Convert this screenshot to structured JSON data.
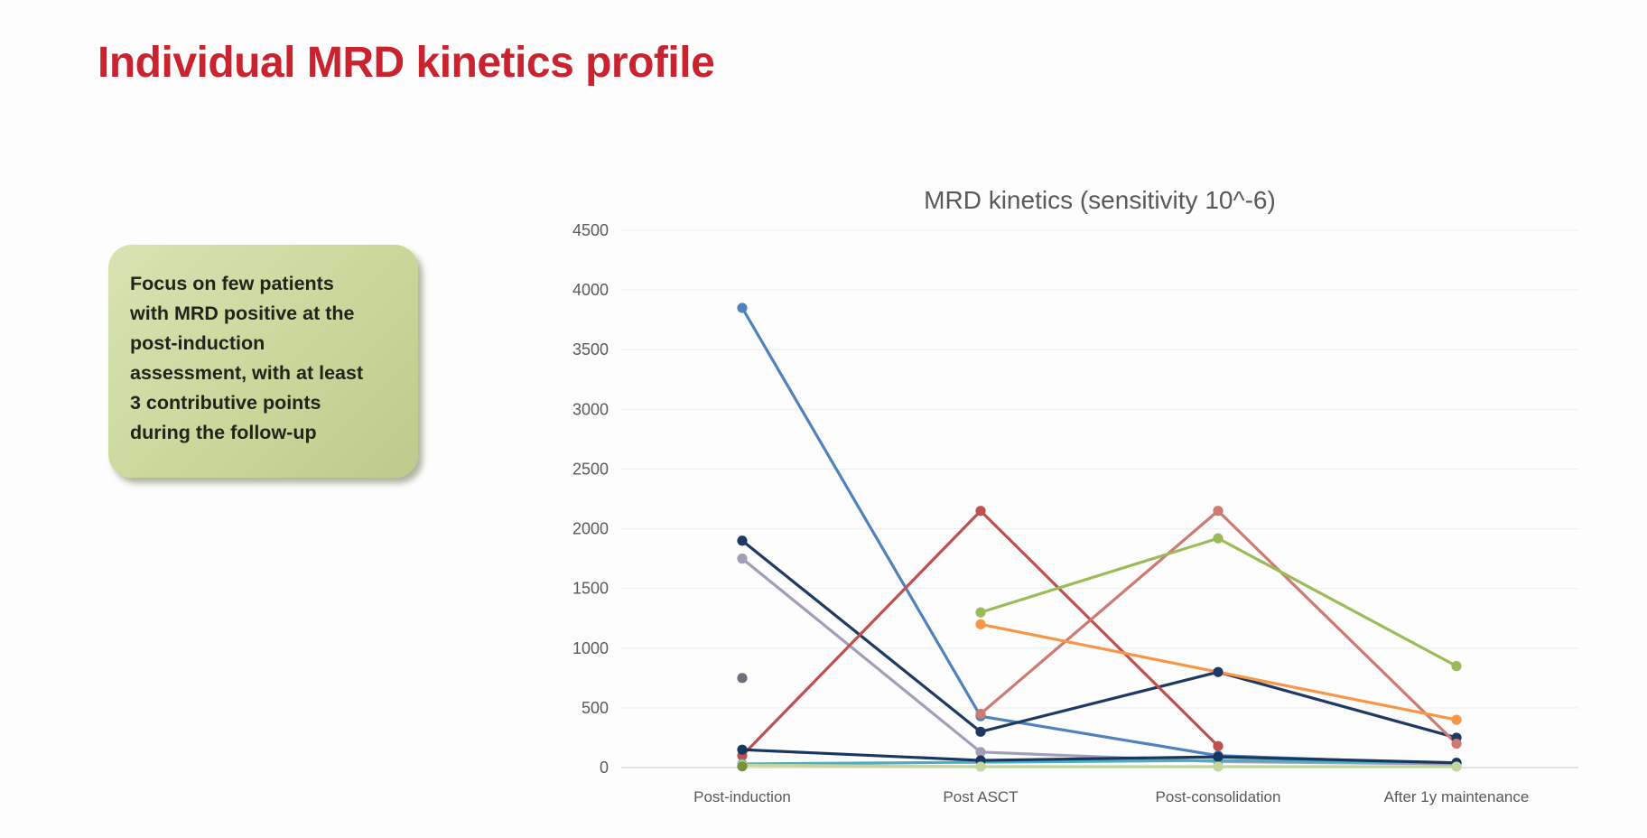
{
  "slide": {
    "title": "Individual MRD kinetics profile",
    "title_color": "#c8232e",
    "background": "#fdfdfd"
  },
  "callout": {
    "background": "#c9d79b",
    "text": "Focus on few patients with MRD positive at the post-induction assessment, with at least 3 contributive points during the follow-up",
    "lines": [
      "Focus on few patients",
      "with MRD positive at the",
      "post-induction",
      "assessment, with at least",
      "3 contributive points",
      "during the follow-up"
    ]
  },
  "chart_data": {
    "type": "line",
    "title": "MRD kinetics (sensitivity 10^-6)",
    "title_color": "#595959",
    "xlabel": "",
    "ylabel": "",
    "categories": [
      "Post-induction",
      "Post ASCT",
      "Post-consolidation",
      "After 1y maintenance"
    ],
    "ylim": [
      0,
      4500
    ],
    "y_ticks": [
      4500,
      4000,
      3500,
      3000,
      2500,
      2000,
      1500,
      1000,
      500,
      0
    ],
    "grid": true,
    "legend": "none",
    "axis_text_color": "#595959",
    "gridline_color": "#efefef",
    "baseline_color": "#d8d8d8",
    "series": [
      {
        "name": "patient-steel-blue",
        "color": "#4F81BD",
        "values": [
          3850,
          430,
          100,
          30
        ]
      },
      {
        "name": "patient-dark-navy",
        "color": "#1F3864",
        "values": [
          1900,
          300,
          800,
          250
        ]
      },
      {
        "name": "patient-gray-lavender",
        "color": "#A39EB5",
        "values": [
          1750,
          130,
          50,
          30
        ]
      },
      {
        "name": "patient-brick-red",
        "color": "#C0504D",
        "values": [
          100,
          2150,
          180,
          null
        ]
      },
      {
        "name": "patient-salmon",
        "color": "#CE7A72",
        "values": [
          null,
          450,
          2150,
          200
        ]
      },
      {
        "name": "patient-olive-green",
        "color": "#9BBB59",
        "values": [
          null,
          1300,
          1920,
          850
        ]
      },
      {
        "name": "patient-orange",
        "color": "#F79646",
        "values": [
          null,
          1200,
          800,
          400
        ],
        "hide_markers": [
          2
        ]
      },
      {
        "name": "patient-teal",
        "color": "#4BACC6",
        "values": [
          30,
          45,
          60,
          40
        ]
      },
      {
        "name": "patient-navy-low",
        "color": "#17375E",
        "values": [
          150,
          60,
          90,
          40
        ]
      },
      {
        "name": "patient-pale-green",
        "color": "#C3D69B",
        "values": [
          20,
          8,
          8,
          8
        ]
      },
      {
        "name": "patient-dark-olive-dot",
        "color": "#77933C",
        "values": [
          10,
          null,
          null,
          null
        ]
      },
      {
        "name": "patient-lone-gray-dot",
        "color": "#6E6E78",
        "values": [
          750,
          null,
          null,
          null
        ]
      }
    ]
  }
}
